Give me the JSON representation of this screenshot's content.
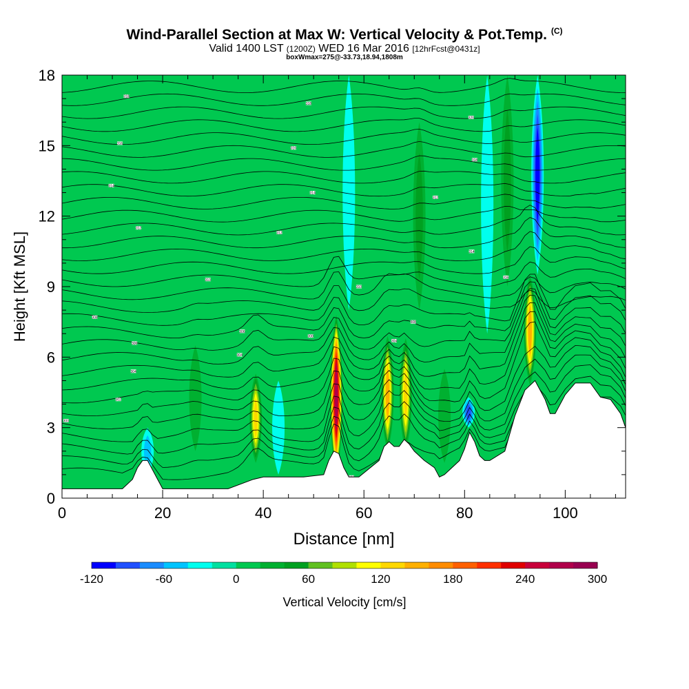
{
  "header": {
    "title": "Wind-Parallel Section at Max W: Vertical Velocity & Pot.Temp.",
    "copyright": "(C)",
    "valid_main": "Valid 1400 LST",
    "valid_z": "(1200Z)",
    "valid_date": "WED 16 Mar 2016",
    "forecast": "[12hrFcst@0431z]",
    "boxwmax": "boxWmax=275@-33.73,18.94,1808m"
  },
  "chart_data": {
    "type": "heatmap",
    "xlabel": "Distance [nm]",
    "ylabel": "Height [Kft MSL]",
    "xlim": [
      0,
      112
    ],
    "ylim": [
      0,
      18
    ],
    "x_ticks": [
      0,
      20,
      40,
      60,
      80,
      100
    ],
    "y_ticks": [
      0,
      3,
      6,
      9,
      12,
      15,
      18
    ],
    "grid": false,
    "background_w_cms": 0,
    "colorbar": {
      "label": "Vertical Velocity [cm/s]",
      "placement": "bottom",
      "min": -120,
      "max": 300,
      "step": 20,
      "tick_labels": [
        "-120",
        "-60",
        "0",
        "60",
        "120",
        "180",
        "240",
        "300"
      ],
      "colors": [
        "#0000ff",
        "#2050ff",
        "#1a8cff",
        "#00c4ff",
        "#00ffee",
        "#00e0a0",
        "#00c850",
        "#00b030",
        "#00a020",
        "#60c020",
        "#b0e000",
        "#ffff00",
        "#ffd800",
        "#ffb000",
        "#ff8c00",
        "#ff6000",
        "#ff3000",
        "#e00000",
        "#c8003a",
        "#b0004a",
        "#980050"
      ]
    },
    "updrafts": [
      {
        "x": 38.5,
        "top_kft": 5.3,
        "base_kft": 1.5,
        "peak_w": 130
      },
      {
        "x": 54.5,
        "top_kft": 7.8,
        "base_kft": 0.8,
        "peak_w": 275
      },
      {
        "x": 64.7,
        "top_kft": 6.9,
        "base_kft": 2.0,
        "peak_w": 150
      },
      {
        "x": 68.3,
        "top_kft": 6.8,
        "base_kft": 2.0,
        "peak_w": 120
      },
      {
        "x": 93.0,
        "top_kft": 9.5,
        "base_kft": 4.8,
        "peak_w": 150
      },
      {
        "x": 71.0,
        "top_kft": 16.0,
        "base_kft": 8.0,
        "peak_w": 40
      },
      {
        "x": 88.5,
        "top_kft": 18.0,
        "base_kft": 9.0,
        "peak_w": 40
      },
      {
        "x": 26.5,
        "top_kft": 6.5,
        "base_kft": 2.0,
        "peak_w": 30
      },
      {
        "x": 76.0,
        "top_kft": 5.5,
        "base_kft": 1.5,
        "peak_w": 25
      }
    ],
    "downdrafts": [
      {
        "x": 94.5,
        "top_kft": 18.0,
        "base_kft": 9.5,
        "min_w": -110
      },
      {
        "x": 80.8,
        "top_kft": 4.3,
        "base_kft": 3.0,
        "min_w": -80
      },
      {
        "x": 84.5,
        "top_kft": 18.0,
        "base_kft": 7.0,
        "min_w": -35
      },
      {
        "x": 43.0,
        "top_kft": 5.0,
        "base_kft": 1.0,
        "min_w": -30
      },
      {
        "x": 57.0,
        "top_kft": 18.0,
        "base_kft": 8.0,
        "min_w": -30
      },
      {
        "x": 17.0,
        "top_kft": 3.0,
        "base_kft": 1.0,
        "min_w": -40
      }
    ],
    "terrain": {
      "x": [
        0,
        12,
        14,
        15,
        16,
        17,
        18,
        19,
        20,
        27,
        33,
        38,
        40,
        48,
        52,
        53,
        54,
        55,
        56,
        57,
        59,
        63,
        64,
        65,
        66,
        67,
        68,
        69,
        70,
        72,
        74,
        75,
        76,
        79,
        80,
        81,
        82,
        83,
        84,
        85,
        88,
        90,
        92,
        94,
        96,
        97,
        98,
        100,
        102,
        105,
        107,
        109,
        111,
        112
      ],
      "y_kft": [
        0.4,
        0.4,
        0.8,
        1.3,
        1.6,
        1.6,
        1.2,
        0.8,
        0.4,
        0.4,
        0.4,
        0.8,
        0.9,
        0.9,
        1.0,
        1.6,
        2.0,
        1.9,
        1.3,
        0.9,
        0.9,
        1.6,
        2.2,
        2.4,
        2.2,
        2.2,
        2.5,
        2.3,
        2.0,
        1.6,
        1.3,
        0.9,
        1.0,
        1.6,
        2.1,
        2.8,
        2.4,
        1.8,
        1.6,
        1.6,
        2.0,
        3.5,
        4.6,
        5.0,
        4.2,
        3.6,
        3.6,
        4.4,
        4.9,
        4.9,
        4.3,
        4.2,
        3.6,
        3.0
      ]
    },
    "theta_contour_labels": [
      {
        "label": "300",
        "x": 0.8,
        "y_kft": 3.3
      },
      {
        "label": "302",
        "x": 11.2,
        "y_kft": 4.2
      },
      {
        "label": "304",
        "x": 14.2,
        "y_kft": 5.4
      },
      {
        "label": "306",
        "x": 14.4,
        "y_kft": 6.6
      },
      {
        "label": "308",
        "x": 6.5,
        "y_kft": 7.7
      },
      {
        "label": "310",
        "x": 29.0,
        "y_kft": 9.3
      },
      {
        "label": "312",
        "x": 15.2,
        "y_kft": 11.5
      },
      {
        "label": "314",
        "x": 9.8,
        "y_kft": 13.3
      },
      {
        "label": "316",
        "x": 11.5,
        "y_kft": 15.1
      },
      {
        "label": "318",
        "x": 12.8,
        "y_kft": 17.1
      },
      {
        "label": "304",
        "x": 35.3,
        "y_kft": 6.1
      },
      {
        "label": "306",
        "x": 35.8,
        "y_kft": 7.1
      },
      {
        "label": "308",
        "x": 49.4,
        "y_kft": 6.9
      },
      {
        "label": "310",
        "x": 59.0,
        "y_kft": 9.0
      },
      {
        "label": "312",
        "x": 43.2,
        "y_kft": 11.3
      },
      {
        "label": "314",
        "x": 49.8,
        "y_kft": 13.0
      },
      {
        "label": "316",
        "x": 46.0,
        "y_kft": 14.9
      },
      {
        "label": "318",
        "x": 49.0,
        "y_kft": 16.8
      },
      {
        "label": "300",
        "x": 57.5,
        "y_kft": 0.9
      },
      {
        "label": "304",
        "x": 66.0,
        "y_kft": 6.7
      },
      {
        "label": "308",
        "x": 69.8,
        "y_kft": 7.5
      },
      {
        "label": "312",
        "x": 74.2,
        "y_kft": 12.8
      },
      {
        "label": "314",
        "x": 81.4,
        "y_kft": 10.5
      },
      {
        "label": "316",
        "x": 88.2,
        "y_kft": 9.4
      },
      {
        "label": "318",
        "x": 82.0,
        "y_kft": 14.4
      },
      {
        "label": "320",
        "x": 81.3,
        "y_kft": 16.2
      }
    ]
  }
}
